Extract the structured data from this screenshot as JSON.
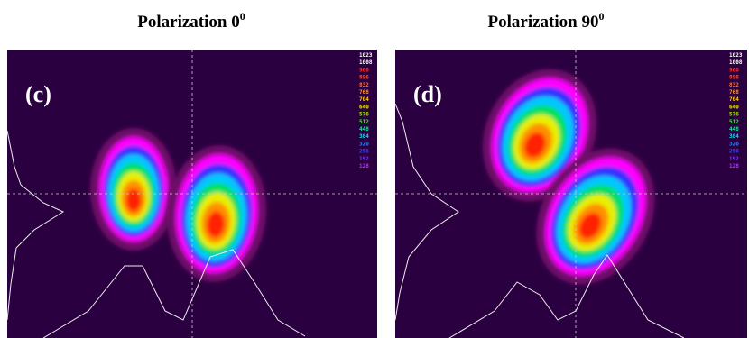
{
  "panels": [
    {
      "title": "Polarization 0",
      "title_sup": "0",
      "label": "(c)",
      "scale": [
        "1023",
        "1008",
        "960",
        "896",
        "832",
        "768",
        "704",
        "640",
        "576",
        "512",
        "448",
        "384",
        "320",
        "256",
        "192",
        "128"
      ]
    },
    {
      "title": "Polarization 90",
      "title_sup": "0",
      "label": "(d)",
      "scale": [
        "1023",
        "1008",
        "960",
        "896",
        "832",
        "768",
        "704",
        "640",
        "576",
        "512",
        "448",
        "384",
        "320",
        "256",
        "192",
        "128"
      ]
    }
  ]
}
